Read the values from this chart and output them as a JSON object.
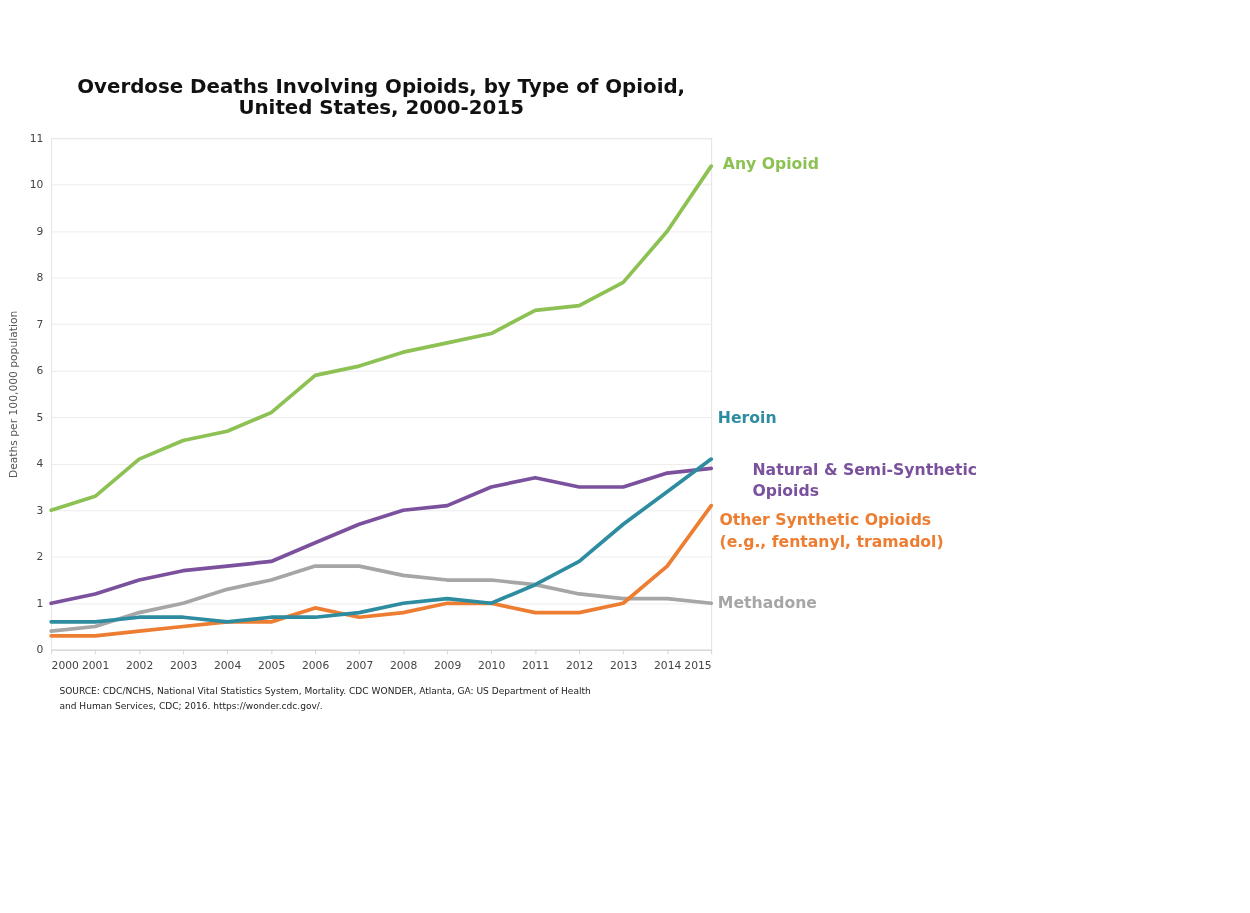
{
  "chart_data": {
    "type": "line",
    "title": "Overdose Deaths Involving Opioids, by Type of Opioid,\nUnited States, 2000-2015",
    "ylabel": "Deaths per 100,000 population",
    "x": [
      2000,
      2001,
      2002,
      2003,
      2004,
      2005,
      2006,
      2007,
      2008,
      2009,
      2010,
      2011,
      2012,
      2013,
      2014,
      2015
    ],
    "xlim": [
      2000,
      2015
    ],
    "xticks": [
      2000,
      2001,
      2002,
      2003,
      2004,
      2005,
      2006,
      2007,
      2008,
      2009,
      2010,
      2011,
      2012,
      2013,
      2014,
      2015
    ],
    "ylim": [
      0,
      11
    ],
    "yticks": [
      0,
      1,
      2,
      3,
      4,
      5,
      6,
      7,
      8,
      9,
      10,
      11
    ],
    "grid": "y",
    "legend": false,
    "marker": "none",
    "line_style": "solid",
    "series": [
      {
        "name": "Any Opioid",
        "color": "#8dc153",
        "values": [
          3.0,
          3.3,
          4.1,
          4.5,
          4.7,
          5.1,
          5.9,
          6.1,
          6.4,
          6.6,
          6.8,
          7.3,
          7.4,
          7.9,
          9.0,
          10.4
        ]
      },
      {
        "name": "Natural & Semi-Synthetic\nOpioids",
        "color": "#7b519d",
        "values": [
          1.0,
          1.2,
          1.5,
          1.7,
          1.8,
          1.9,
          2.3,
          2.7,
          3.0,
          3.1,
          3.5,
          3.7,
          3.5,
          3.5,
          3.8,
          3.9
        ]
      },
      {
        "name": "Methadone",
        "color": "#a6a6a6",
        "values": [
          0.4,
          0.5,
          0.8,
          1.0,
          1.3,
          1.5,
          1.8,
          1.8,
          1.6,
          1.5,
          1.5,
          1.4,
          1.2,
          1.1,
          1.1,
          1.0
        ]
      },
      {
        "name": "Other Synthetic Opioids\n(e.g., fentanyl, tramadol)",
        "color": "#ed7d31",
        "values": [
          0.3,
          0.3,
          0.4,
          0.5,
          0.6,
          0.6,
          0.9,
          0.7,
          0.8,
          1.0,
          1.0,
          0.8,
          0.8,
          1.0,
          1.8,
          3.1
        ]
      },
      {
        "name": "Heroin",
        "color": "#2e8ca0",
        "values": [
          0.6,
          0.6,
          0.7,
          0.7,
          0.6,
          0.7,
          0.7,
          0.8,
          1.0,
          1.1,
          1.0,
          1.4,
          1.9,
          2.7,
          3.4,
          4.1
        ]
      }
    ],
    "annotations": [
      "SOURCE: CDC/NCHS, National Vital Statistics System, Mortality. CDC WONDER, Atlanta, GA: US Department of Health\nand Human Services, CDC; 2016. https://wonder.cdc.gov/."
    ]
  }
}
